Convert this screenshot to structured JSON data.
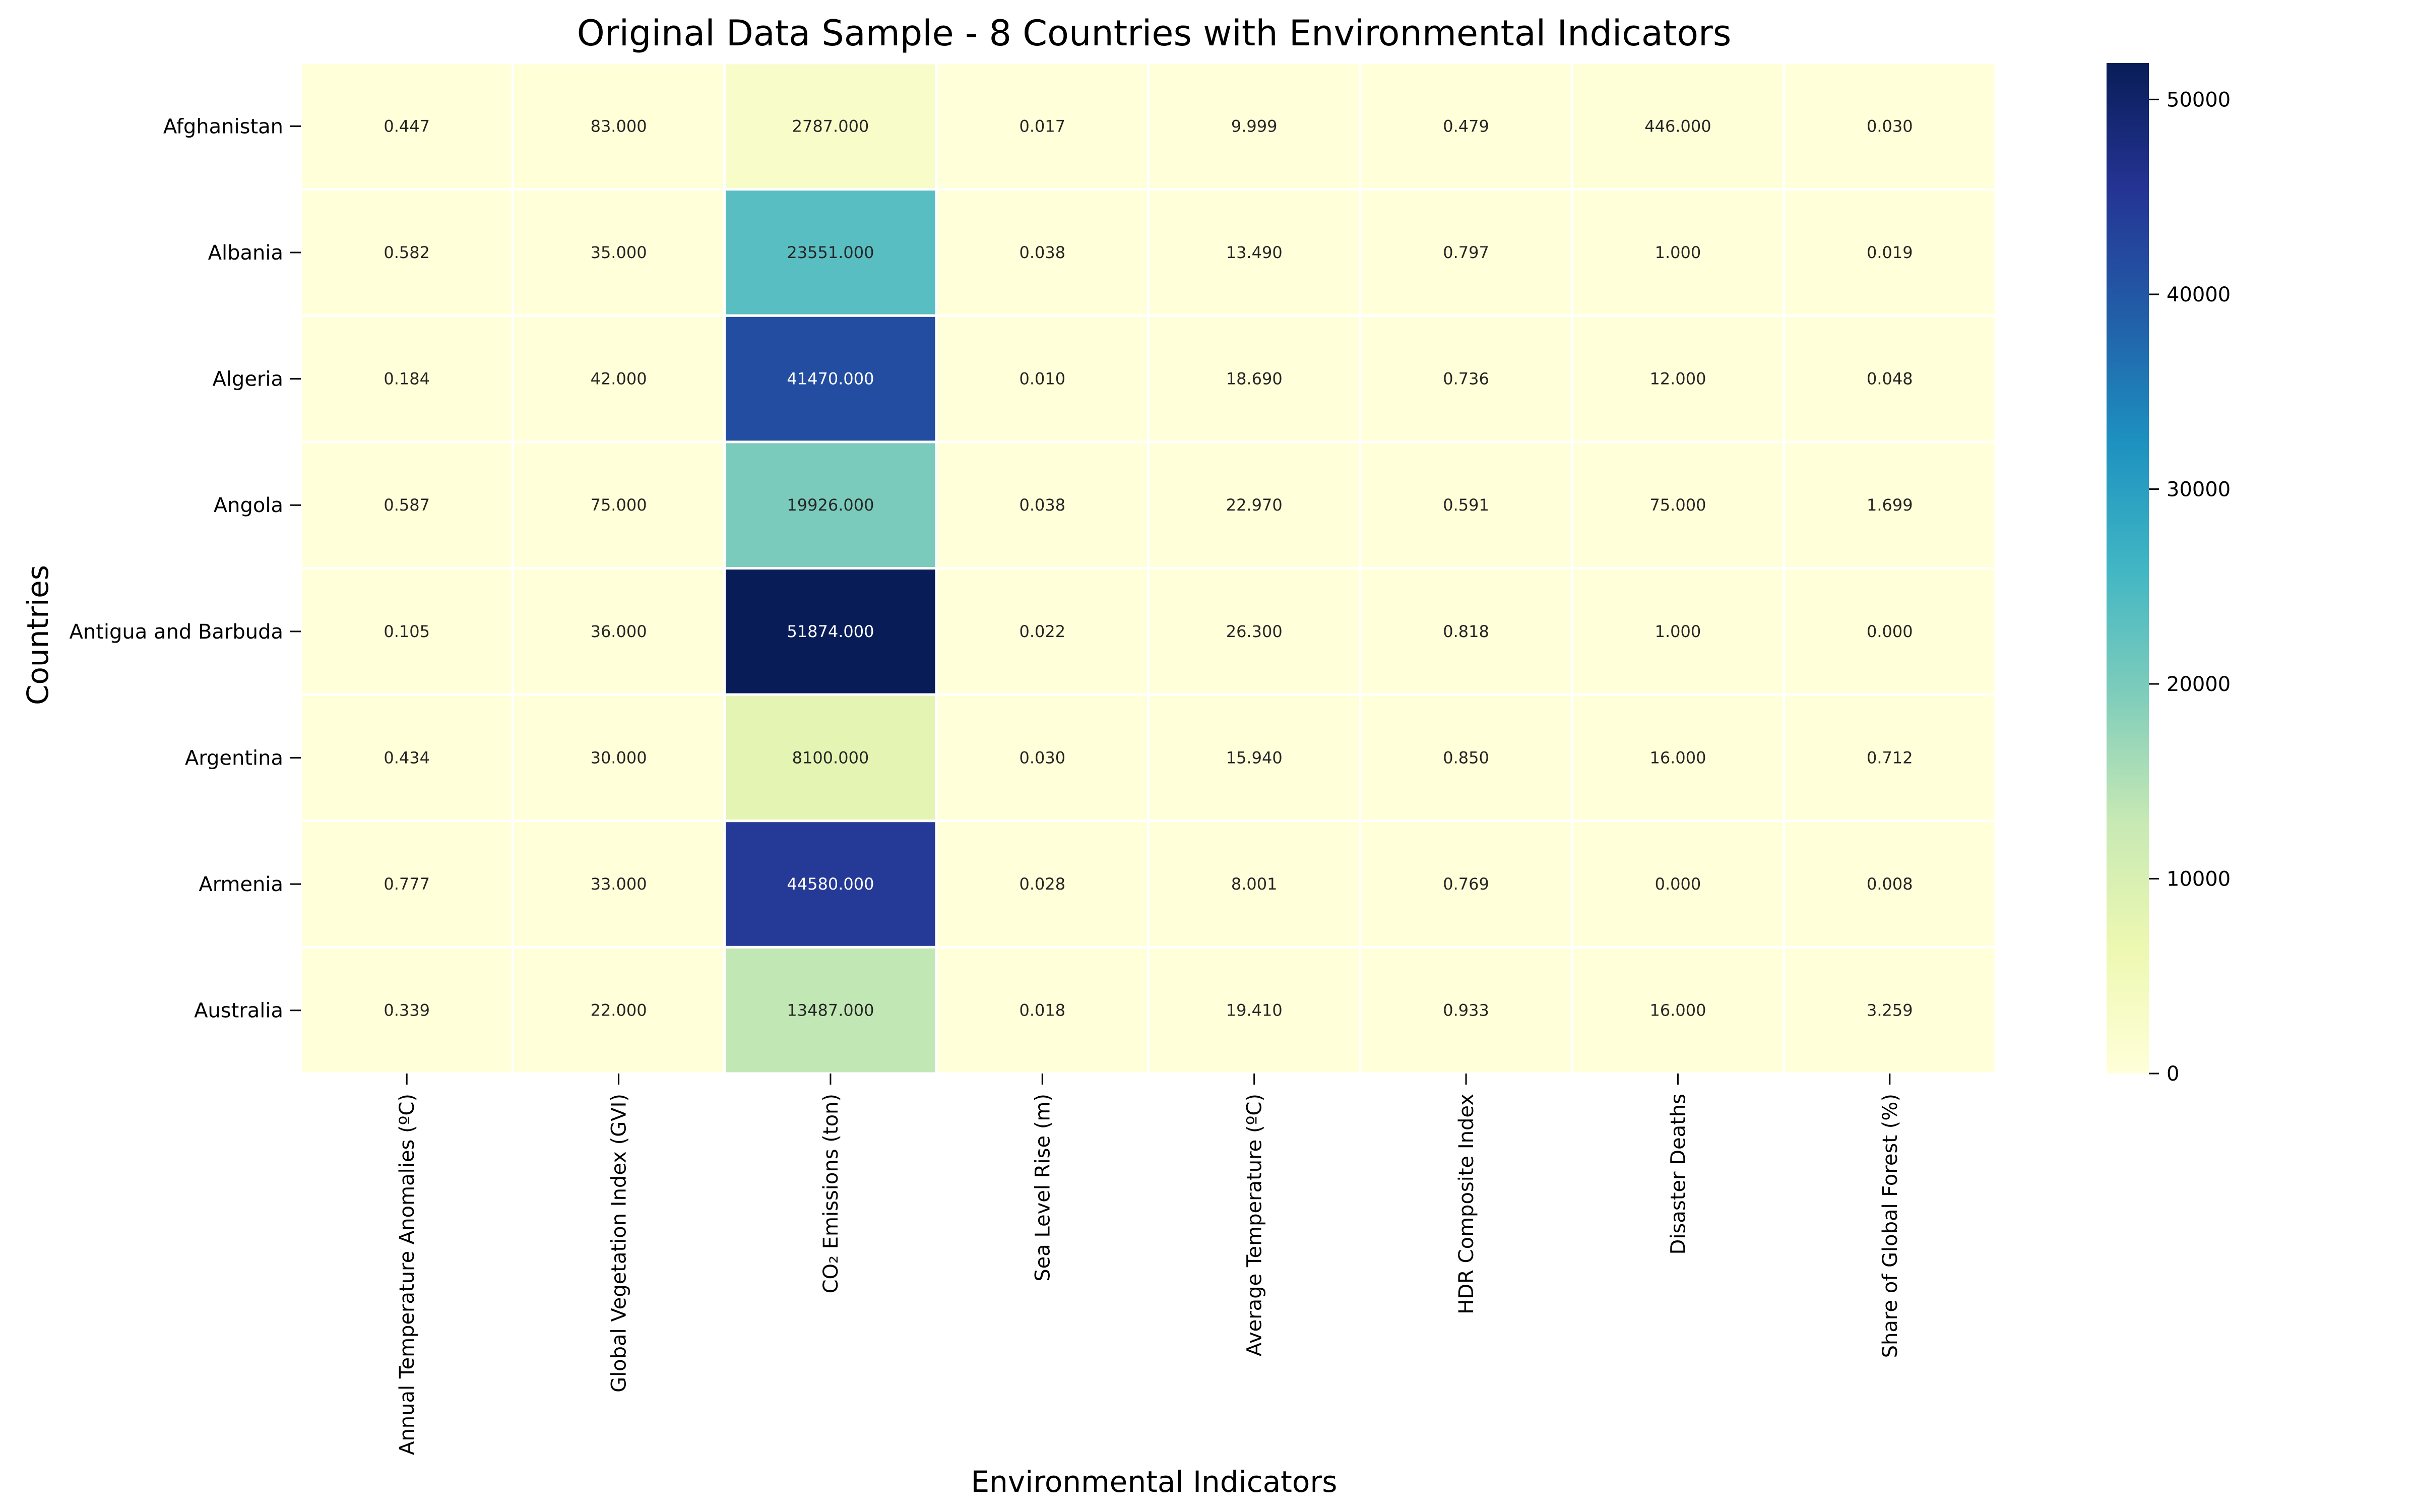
{
  "chart_data": {
    "type": "heatmap",
    "title": "Original Data Sample - 8 Countries with Environmental Indicators",
    "xlabel": "Environmental Indicators",
    "ylabel": "Countries",
    "columns": [
      "Annual Temperature Anomalies (ºC)",
      "Global Vegetation Index (GVI)",
      "CO₂ Emissions (ton)",
      "Sea Level Rise (m)",
      "Average Temperature (ºC)",
      "HDR Composite Index",
      "Disaster Deaths",
      "Share of Global Forest (%)"
    ],
    "rows": [
      "Afghanistan",
      "Albania",
      "Algeria",
      "Angola",
      "Antigua and Barbuda",
      "Argentina",
      "Armenia",
      "Australia"
    ],
    "values": [
      [
        0.447,
        83,
        2787,
        0.017,
        9.999,
        0.479,
        446,
        0.03
      ],
      [
        0.582,
        35,
        23551,
        0.038,
        13.49,
        0.797,
        1,
        0.019
      ],
      [
        0.184,
        42,
        41470,
        0.01,
        18.69,
        0.736,
        12,
        0.048
      ],
      [
        0.587,
        75,
        19926,
        0.038,
        22.97,
        0.591,
        75,
        1.699
      ],
      [
        0.105,
        36,
        51874,
        0.022,
        26.3,
        0.818,
        1,
        0.0
      ],
      [
        0.434,
        30,
        8100,
        0.03,
        15.94,
        0.85,
        16,
        0.712
      ],
      [
        0.777,
        33,
        44580,
        0.028,
        8.001,
        0.769,
        0,
        0.008
      ],
      [
        0.339,
        22,
        13487,
        0.018,
        19.41,
        0.933,
        16,
        3.259
      ]
    ],
    "labels": [
      [
        "0.447",
        "83.000",
        "2787.000",
        "0.017",
        "9.999",
        "0.479",
        "446.000",
        "0.030"
      ],
      [
        "0.582",
        "35.000",
        "23551.000",
        "0.038",
        "13.490",
        "0.797",
        "1.000",
        "0.019"
      ],
      [
        "0.184",
        "42.000",
        "41470.000",
        "0.010",
        "18.690",
        "0.736",
        "12.000",
        "0.048"
      ],
      [
        "0.587",
        "75.000",
        "19926.000",
        "0.038",
        "22.970",
        "0.591",
        "75.000",
        "1.699"
      ],
      [
        "0.105",
        "36.000",
        "51874.000",
        "0.022",
        "26.300",
        "0.818",
        "1.000",
        "0.000"
      ],
      [
        "0.434",
        "30.000",
        "8100.000",
        "0.030",
        "15.940",
        "0.850",
        "16.000",
        "0.712"
      ],
      [
        "0.777",
        "33.000",
        "44580.000",
        "0.028",
        "8.001",
        "0.769",
        "0.000",
        "0.008"
      ],
      [
        "0.339",
        "22.000",
        "13487.000",
        "0.018",
        "19.410",
        "0.933",
        "16.000",
        "3.259"
      ]
    ],
    "colorbar": {
      "colormap": "YlGnBu",
      "vmin": 0,
      "vmax": 51874,
      "ticks": [
        0,
        10000,
        20000,
        30000,
        40000,
        50000
      ]
    },
    "colors": {
      "text_dark": "#262626",
      "text_light": "#ffffff",
      "cell_border": "#ffffff",
      "axis": "#000000"
    }
  }
}
